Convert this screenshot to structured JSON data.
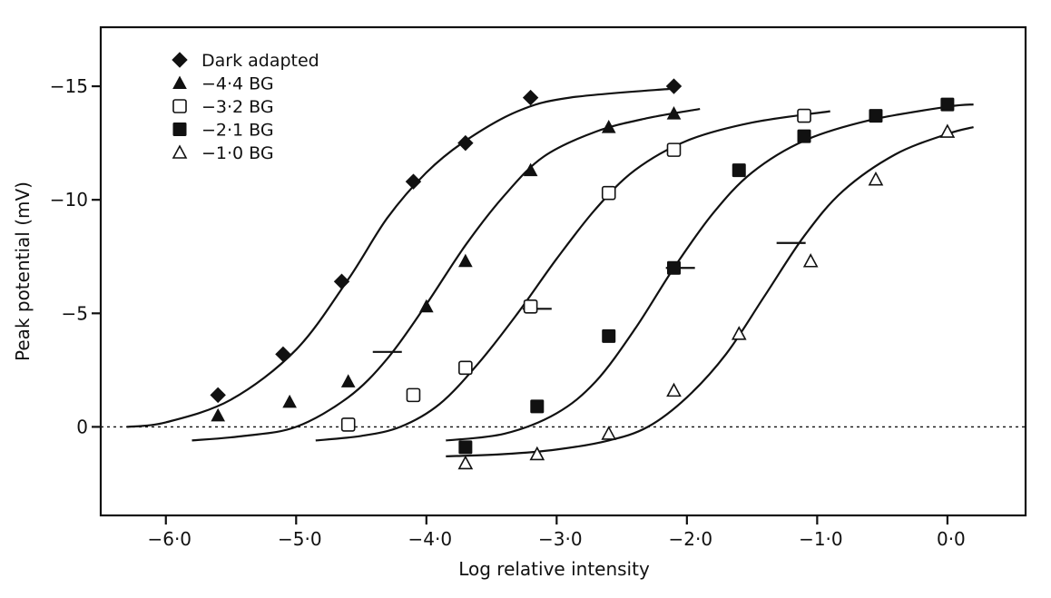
{
  "chart_data": {
    "type": "scatter",
    "xlabel": "Log relative intensity",
    "ylabel": "Peak potential (mV)",
    "xlim": [
      -6.5,
      0.6
    ],
    "ylim": [
      3.9,
      -17.6
    ],
    "y_axis_inverted": true,
    "x_ticks": [
      -6.0,
      -5.0,
      -4.0,
      -3.0,
      -2.0,
      -1.0,
      0.0
    ],
    "x_tick_labels": [
      "−6·0",
      "−5·0",
      "−4·0",
      "−3·0",
      "−2·0",
      "−1·0",
      "0·0"
    ],
    "y_ticks": [
      -15,
      -10,
      -5,
      0
    ],
    "y_tick_labels": [
      "−15",
      "−10",
      "−5",
      "0"
    ],
    "zero_reference_line": true,
    "grid": false,
    "legend_position": "top-left",
    "series": [
      {
        "name": "Dark adapted",
        "marker": "diamond-filled",
        "points": [
          [
            -5.6,
            -1.4
          ],
          [
            -5.1,
            -3.2
          ],
          [
            -4.65,
            -6.4
          ],
          [
            -4.1,
            -10.8
          ],
          [
            -3.7,
            -12.5
          ],
          [
            -3.2,
            -14.5
          ],
          [
            -2.1,
            -15.0
          ]
        ],
        "curve": [
          [
            -6.3,
            0.0
          ],
          [
            -6.0,
            -0.2
          ],
          [
            -5.5,
            -1.2
          ],
          [
            -5.0,
            -3.4
          ],
          [
            -4.6,
            -6.5
          ],
          [
            -4.3,
            -9.2
          ],
          [
            -4.0,
            -11.2
          ],
          [
            -3.7,
            -12.6
          ],
          [
            -3.3,
            -13.9
          ],
          [
            -2.9,
            -14.5
          ],
          [
            -2.1,
            -14.9
          ]
        ],
        "half_marker": null
      },
      {
        "name": "−4·4 BG",
        "marker": "triangle-filled",
        "points": [
          [
            -5.6,
            -0.5
          ],
          [
            -5.05,
            -1.1
          ],
          [
            -4.6,
            -2.0
          ],
          [
            -4.0,
            -5.3
          ],
          [
            -3.7,
            -7.3
          ],
          [
            -3.2,
            -11.3
          ],
          [
            -2.6,
            -13.2
          ],
          [
            -2.1,
            -13.8
          ]
        ],
        "curve": [
          [
            -5.8,
            0.6
          ],
          [
            -5.4,
            0.4
          ],
          [
            -5.0,
            0.0
          ],
          [
            -4.6,
            -1.3
          ],
          [
            -4.3,
            -3.0
          ],
          [
            -4.0,
            -5.4
          ],
          [
            -3.7,
            -8.0
          ],
          [
            -3.4,
            -10.2
          ],
          [
            -3.1,
            -11.9
          ],
          [
            -2.7,
            -13.0
          ],
          [
            -2.3,
            -13.6
          ],
          [
            -1.9,
            -14.0
          ]
        ],
        "half_marker": [
          -4.3,
          -3.3
        ]
      },
      {
        "name": "−3·2 BG",
        "marker": "square-open",
        "points": [
          [
            -4.6,
            -0.1
          ],
          [
            -4.1,
            -1.4
          ],
          [
            -3.7,
            -2.6
          ],
          [
            -3.2,
            -5.3
          ],
          [
            -2.6,
            -10.3
          ],
          [
            -2.1,
            -12.2
          ],
          [
            -1.1,
            -13.7
          ]
        ],
        "curve": [
          [
            -4.85,
            0.6
          ],
          [
            -4.5,
            0.4
          ],
          [
            -4.2,
            0.0
          ],
          [
            -3.9,
            -1.0
          ],
          [
            -3.6,
            -2.8
          ],
          [
            -3.3,
            -5.0
          ],
          [
            -3.0,
            -7.4
          ],
          [
            -2.7,
            -9.6
          ],
          [
            -2.4,
            -11.3
          ],
          [
            -2.0,
            -12.6
          ],
          [
            -1.5,
            -13.4
          ],
          [
            -0.9,
            -13.9
          ]
        ],
        "half_marker": [
          -3.15,
          -5.2
        ]
      },
      {
        "name": "−2·1 BG",
        "marker": "square-filled",
        "points": [
          [
            -3.7,
            0.9
          ],
          [
            -3.15,
            -0.9
          ],
          [
            -2.6,
            -4.0
          ],
          [
            -2.1,
            -7.0
          ],
          [
            -1.6,
            -11.3
          ],
          [
            -1.1,
            -12.8
          ],
          [
            -0.55,
            -13.7
          ],
          [
            0.0,
            -14.2
          ]
        ],
        "curve": [
          [
            -3.85,
            0.6
          ],
          [
            -3.4,
            0.3
          ],
          [
            -3.0,
            -0.6
          ],
          [
            -2.7,
            -2.0
          ],
          [
            -2.4,
            -4.3
          ],
          [
            -2.1,
            -7.0
          ],
          [
            -1.8,
            -9.4
          ],
          [
            -1.5,
            -11.2
          ],
          [
            -1.1,
            -12.6
          ],
          [
            -0.6,
            -13.5
          ],
          [
            0.0,
            -14.1
          ],
          [
            0.2,
            -14.2
          ]
        ],
        "half_marker": [
          -2.05,
          -7.0
        ]
      },
      {
        "name": "−1·0 BG",
        "marker": "triangle-open",
        "points": [
          [
            -3.7,
            1.6
          ],
          [
            -3.15,
            1.2
          ],
          [
            -2.6,
            0.3
          ],
          [
            -2.1,
            -1.6
          ],
          [
            -1.6,
            -4.1
          ],
          [
            -1.05,
            -7.3
          ],
          [
            -0.55,
            -10.9
          ],
          [
            0.0,
            -13.0
          ]
        ],
        "curve": [
          [
            -3.85,
            1.3
          ],
          [
            -3.4,
            1.2
          ],
          [
            -3.0,
            1.0
          ],
          [
            -2.6,
            0.6
          ],
          [
            -2.3,
            0.0
          ],
          [
            -2.0,
            -1.3
          ],
          [
            -1.7,
            -3.2
          ],
          [
            -1.4,
            -5.8
          ],
          [
            -1.1,
            -8.4
          ],
          [
            -0.8,
            -10.4
          ],
          [
            -0.4,
            -12.0
          ],
          [
            0.0,
            -12.9
          ],
          [
            0.2,
            -13.2
          ]
        ],
        "half_marker": [
          -1.2,
          -8.1
        ]
      }
    ]
  }
}
